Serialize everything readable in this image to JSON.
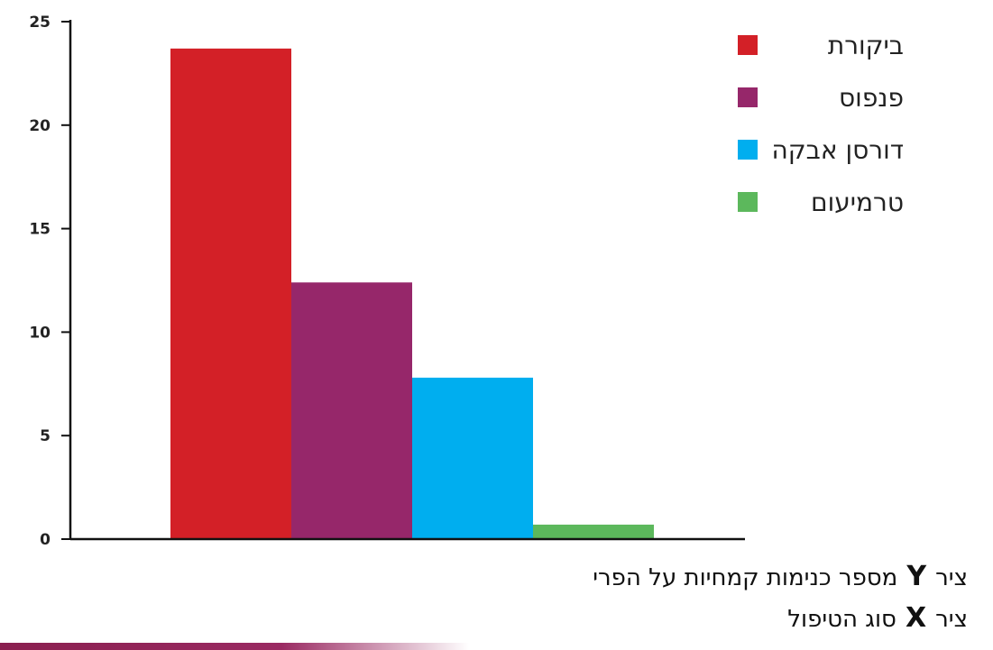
{
  "chart_data": {
    "type": "bar",
    "categories": [
      "ביקורת",
      "פנפוס",
      "דורסן אבקה",
      "טרמיעום"
    ],
    "values": [
      23.7,
      12.4,
      7.8,
      0.7
    ],
    "colors": [
      "#d32027",
      "#96276a",
      "#00aeef",
      "#5cb85c"
    ],
    "yticks": [
      "0",
      "5",
      "10",
      "15",
      "20",
      "25"
    ],
    "ylim": [
      0,
      25
    ],
    "legend": [
      {
        "label": "ביקורת",
        "color": "#d32027"
      },
      {
        "label": "פנפוס",
        "color": "#96276a"
      },
      {
        "label": "דורסן אבקה",
        "color": "#00aeef"
      },
      {
        "label": "טרמיעום",
        "color": "#5cb85c"
      }
    ],
    "legend_position": "top-right",
    "grid": false
  },
  "axis_notes": {
    "y": {
      "word": "ציר",
      "letter": "Y",
      "text": "מספר כנימות קמחיות על הפרי"
    },
    "x": {
      "word": "ציר",
      "letter": "X",
      "text": "סוג הטיפול"
    }
  }
}
